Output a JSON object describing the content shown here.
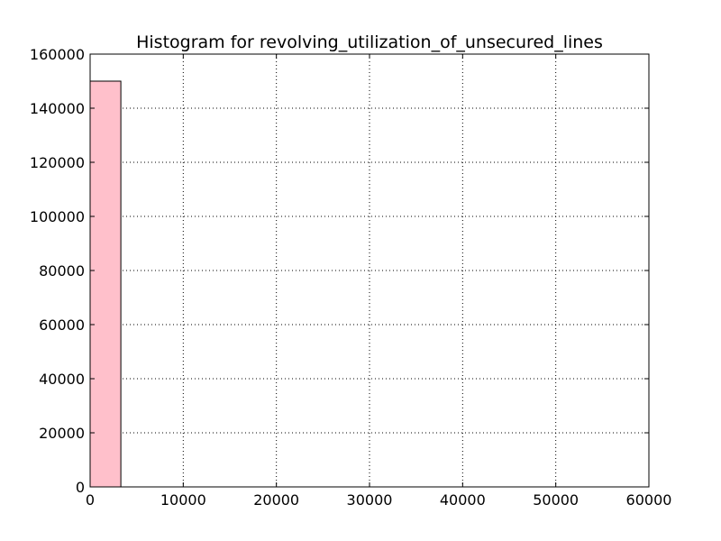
{
  "chart_data": {
    "type": "bar",
    "title": "Histogram for revolving_utilization_of_unsecured_lines",
    "xlabel": "",
    "ylabel": "",
    "xlim": [
      0,
      60000
    ],
    "ylim": [
      0,
      160000
    ],
    "xticks": [
      0,
      10000,
      20000,
      30000,
      40000,
      50000,
      60000
    ],
    "yticks": [
      0,
      20000,
      40000,
      60000,
      80000,
      100000,
      120000,
      140000,
      160000
    ],
    "grid": true,
    "bins": [
      {
        "x0": 0,
        "x1": 3300,
        "count": 150000
      },
      {
        "x0": 3300,
        "x1": 6600,
        "count": 0
      },
      {
        "x0": 6600,
        "x1": 9900,
        "count": 0
      },
      {
        "x0": 9900,
        "x1": 13200,
        "count": 0
      },
      {
        "x0": 13200,
        "x1": 16500,
        "count": 0
      },
      {
        "x0": 16500,
        "x1": 19800,
        "count": 0
      },
      {
        "x0": 19800,
        "x1": 23100,
        "count": 0
      },
      {
        "x0": 23100,
        "x1": 26400,
        "count": 0
      },
      {
        "x0": 26400,
        "x1": 29700,
        "count": 0
      },
      {
        "x0": 29700,
        "x1": 33000,
        "count": 0
      },
      {
        "x0": 33000,
        "x1": 36300,
        "count": 0
      },
      {
        "x0": 36300,
        "x1": 39600,
        "count": 0
      },
      {
        "x0": 39600,
        "x1": 42900,
        "count": 0
      },
      {
        "x0": 42900,
        "x1": 46200,
        "count": 0
      },
      {
        "x0": 46200,
        "x1": 49500,
        "count": 0
      },
      {
        "x0": 49500,
        "x1": 52800,
        "count": 0
      },
      {
        "x0": 52800,
        "x1": 56100,
        "count": 0
      }
    ],
    "bar_color": "#ffc0cb",
    "edge_color": "#000000"
  }
}
